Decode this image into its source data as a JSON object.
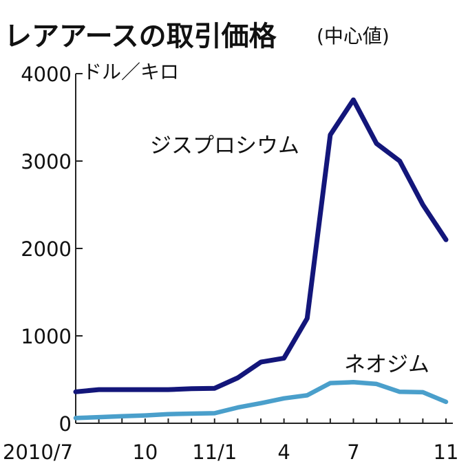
{
  "title": "レアアースの取引価格",
  "subtitle": "(中心値)",
  "unit": "ドル／キロ",
  "chart_data": {
    "type": "line",
    "title": "レアアースの取引価格",
    "subtitle": "(中心値)",
    "ylabel": "ドル／キロ",
    "ylim": [
      0,
      4000
    ],
    "yticks": [
      0,
      1000,
      2000,
      3000,
      4000
    ],
    "x": [
      "2010/7",
      "2010/8",
      "2010/9",
      "2010/10",
      "2010/11",
      "2010/12",
      "2011/1",
      "2011/2",
      "2011/3",
      "2011/4",
      "2011/5",
      "2011/6",
      "2011/7",
      "2011/8",
      "2011/9",
      "2011/10",
      "2011/11"
    ],
    "x_tick_labels": [
      {
        "x": "2010/7",
        "label": "2010/7"
      },
      {
        "x": "2010/10",
        "label": "10"
      },
      {
        "x": "2011/1",
        "label": "11/1"
      },
      {
        "x": "2011/4",
        "label": "4"
      },
      {
        "x": "2011/7",
        "label": "7"
      },
      {
        "x": "2011/11",
        "label": "11"
      }
    ],
    "grid": false,
    "series": [
      {
        "name": "ジスプロシウム",
        "color": "#13167a",
        "values": [
          360,
          385,
          385,
          385,
          385,
          395,
          400,
          520,
          700,
          745,
          1200,
          3300,
          3700,
          3200,
          3000,
          2500,
          2100
        ]
      },
      {
        "name": "ネオジム",
        "color": "#4a9fcb",
        "values": [
          60,
          70,
          80,
          90,
          105,
          110,
          115,
          180,
          230,
          285,
          320,
          460,
          470,
          450,
          360,
          355,
          245
        ]
      }
    ]
  }
}
